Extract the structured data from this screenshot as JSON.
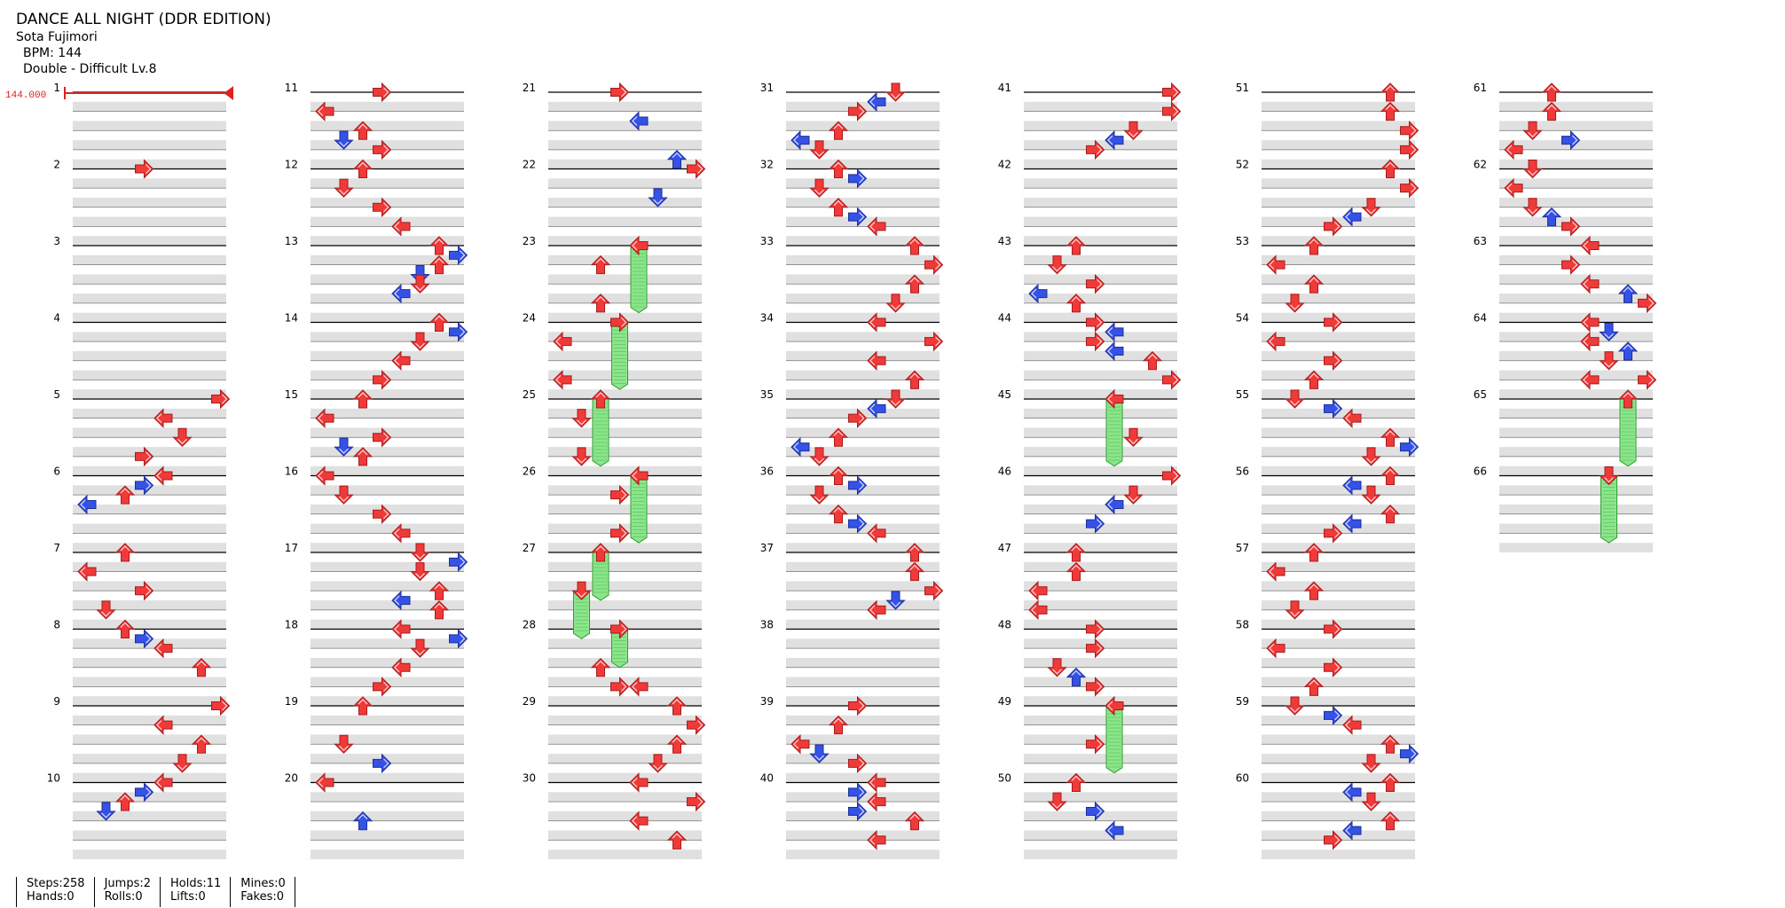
{
  "song": {
    "title": "DANCE ALL NIGHT (DDR EDITION)",
    "artist": "Sota Fujimori",
    "bpm_label": "BPM: 144",
    "difficulty": "Double - Difficult Lv.8"
  },
  "bpm_marker": "144.000",
  "colors": {
    "quarter": "#f03a3a",
    "eighth": "#3552e6",
    "hold": "#8ce58c",
    "hold_stroke": "#2f9e2f",
    "lane_band": "#e0e0e0",
    "bpm_marker": "#e02020"
  },
  "icons": [
    "arrow-left-icon",
    "arrow-down-icon",
    "arrow-up-icon",
    "arrow-right-icon"
  ],
  "stats": [
    [
      {
        "label": "Steps:258"
      },
      {
        "label": "Hands:0"
      }
    ],
    [
      {
        "label": "Jumps:2"
      },
      {
        "label": "Rolls:0"
      }
    ],
    [
      {
        "label": "Holds:11"
      },
      {
        "label": "Lifts:0"
      }
    ],
    [
      {
        "label": "Mines:0"
      },
      {
        "label": "Fakes:0"
      }
    ]
  ],
  "chart_data": {
    "type": "table",
    "measure_count": 66,
    "lanes": [
      "P1-Left",
      "P1-Down",
      "P1-Up",
      "P1-Right",
      "P2-Left",
      "P2-Down",
      "P2-Up",
      "P2-Right"
    ],
    "notes": [
      [
        2,
        0.0,
        3,
        "q"
      ],
      [
        5,
        0.0,
        7,
        "q"
      ],
      [
        5,
        1.0,
        4,
        "q"
      ],
      [
        5,
        2.0,
        5,
        "q"
      ],
      [
        5,
        3.0,
        3,
        "q"
      ],
      [
        6,
        0.0,
        4,
        "q"
      ],
      [
        6,
        0.5,
        3,
        "e"
      ],
      [
        6,
        1.0,
        2,
        "q"
      ],
      [
        6,
        1.5,
        0,
        "e"
      ],
      [
        7,
        0.0,
        2,
        "q"
      ],
      [
        7,
        1.0,
        0,
        "q"
      ],
      [
        7,
        2.0,
        3,
        "q"
      ],
      [
        7,
        3.0,
        1,
        "q"
      ],
      [
        8,
        0.0,
        2,
        "q"
      ],
      [
        8,
        0.5,
        3,
        "e"
      ],
      [
        8,
        1.0,
        4,
        "q"
      ],
      [
        8,
        2.0,
        6,
        "q"
      ],
      [
        9,
        0.0,
        7,
        "q"
      ],
      [
        9,
        1.0,
        4,
        "q"
      ],
      [
        9,
        2.0,
        6,
        "q"
      ],
      [
        9,
        3.0,
        5,
        "q"
      ],
      [
        10,
        0.0,
        4,
        "q"
      ],
      [
        10,
        0.5,
        3,
        "e"
      ],
      [
        10,
        1.0,
        2,
        "q"
      ],
      [
        10,
        1.5,
        1,
        "e"
      ],
      [
        11,
        0.0,
        3,
        "q"
      ],
      [
        11,
        1.0,
        0,
        "q"
      ],
      [
        11,
        2.0,
        2,
        "q"
      ],
      [
        11,
        2.5,
        1,
        "e"
      ],
      [
        11,
        3.0,
        3,
        "q"
      ],
      [
        12,
        0.0,
        2,
        "q"
      ],
      [
        12,
        1.0,
        1,
        "q"
      ],
      [
        12,
        2.0,
        3,
        "q"
      ],
      [
        12,
        3.0,
        4,
        "q"
      ],
      [
        13,
        0.0,
        6,
        "q"
      ],
      [
        13,
        0.5,
        7,
        "e"
      ],
      [
        13,
        1.0,
        6,
        "q"
      ],
      [
        13,
        1.5,
        5,
        "e"
      ],
      [
        13,
        2.0,
        5,
        "q"
      ],
      [
        13,
        2.5,
        4,
        "e"
      ],
      [
        14,
        0.0,
        6,
        "q"
      ],
      [
        14,
        0.5,
        7,
        "e"
      ],
      [
        14,
        1.0,
        5,
        "q"
      ],
      [
        14,
        2.0,
        4,
        "q"
      ],
      [
        14,
        3.0,
        3,
        "q"
      ],
      [
        15,
        0.0,
        2,
        "q"
      ],
      [
        15,
        1.0,
        0,
        "q"
      ],
      [
        15,
        2.0,
        3,
        "q"
      ],
      [
        15,
        2.5,
        1,
        "e"
      ],
      [
        15,
        3.0,
        2,
        "q"
      ],
      [
        16,
        0.0,
        0,
        "q"
      ],
      [
        16,
        1.0,
        1,
        "q"
      ],
      [
        16,
        2.0,
        3,
        "q"
      ],
      [
        16,
        3.0,
        4,
        "q"
      ],
      [
        17,
        0.0,
        5,
        "q"
      ],
      [
        17,
        0.5,
        7,
        "e"
      ],
      [
        17,
        1.0,
        5,
        "q"
      ],
      [
        17,
        2.0,
        6,
        "q"
      ],
      [
        17,
        2.5,
        4,
        "e"
      ],
      [
        17,
        3.0,
        6,
        "q"
      ],
      [
        18,
        0.0,
        4,
        "q"
      ],
      [
        18,
        0.5,
        7,
        "e"
      ],
      [
        18,
        1.0,
        5,
        "q"
      ],
      [
        18,
        2.0,
        4,
        "q"
      ],
      [
        18,
        3.0,
        3,
        "q"
      ],
      [
        19,
        0.0,
        2,
        "q"
      ],
      [
        19,
        2.0,
        1,
        "q"
      ],
      [
        19,
        3.0,
        3,
        "e"
      ],
      [
        20,
        0.0,
        0,
        "q"
      ],
      [
        20,
        2.0,
        2,
        "e"
      ],
      [
        21,
        0.0,
        3,
        "q"
      ],
      [
        21,
        1.5,
        4,
        "e"
      ],
      [
        22,
        0.0,
        7,
        "q"
      ],
      [
        22,
        1.5,
        5,
        "e"
      ],
      [
        22,
        -0.5,
        6,
        "e"
      ],
      [
        23,
        0.0,
        4,
        "q"
      ],
      [
        23,
        1.0,
        2,
        "q"
      ],
      [
        23,
        3.0,
        2,
        "q"
      ],
      [
        24,
        0.0,
        3,
        "q"
      ],
      [
        24,
        1.0,
        0,
        "q"
      ],
      [
        24,
        3.0,
        0,
        "q"
      ],
      [
        25,
        0.0,
        2,
        "q"
      ],
      [
        25,
        1.0,
        1,
        "q"
      ],
      [
        25,
        3.0,
        1,
        "q"
      ],
      [
        26,
        0.0,
        4,
        "q"
      ],
      [
        26,
        1.0,
        3,
        "q"
      ],
      [
        26,
        3.0,
        3,
        "q"
      ],
      [
        27,
        0.0,
        2,
        "q"
      ],
      [
        27,
        2.0,
        1,
        "q"
      ],
      [
        28,
        0.0,
        3,
        "q"
      ],
      [
        28,
        2.0,
        2,
        "q"
      ],
      [
        28,
        3.0,
        3,
        "q"
      ],
      [
        28,
        3.0,
        4,
        "q"
      ],
      [
        29,
        0.0,
        6,
        "q"
      ],
      [
        29,
        1.0,
        7,
        "q"
      ],
      [
        29,
        2.0,
        6,
        "q"
      ],
      [
        29,
        3.0,
        5,
        "q"
      ],
      [
        30,
        0.0,
        4,
        "q"
      ],
      [
        30,
        1.0,
        7,
        "q"
      ],
      [
        30,
        2.0,
        4,
        "q"
      ],
      [
        30,
        3.0,
        6,
        "q"
      ],
      [
        31,
        0.0,
        5,
        "q"
      ],
      [
        31,
        0.5,
        4,
        "e"
      ],
      [
        31,
        1.0,
        3,
        "q"
      ],
      [
        31,
        2.0,
        2,
        "q"
      ],
      [
        31,
        2.5,
        0,
        "e"
      ],
      [
        31,
        3.0,
        1,
        "q"
      ],
      [
        32,
        0.0,
        2,
        "q"
      ],
      [
        32,
        0.5,
        3,
        "e"
      ],
      [
        32,
        1.0,
        1,
        "q"
      ],
      [
        32,
        2.0,
        2,
        "q"
      ],
      [
        32,
        2.5,
        3,
        "e"
      ],
      [
        32,
        3.0,
        4,
        "q"
      ],
      [
        33,
        0.0,
        6,
        "q"
      ],
      [
        33,
        1.0,
        7,
        "q"
      ],
      [
        33,
        2.0,
        6,
        "q"
      ],
      [
        33,
        3.0,
        5,
        "q"
      ],
      [
        34,
        0.0,
        4,
        "q"
      ],
      [
        34,
        1.0,
        7,
        "q"
      ],
      [
        34,
        2.0,
        4,
        "q"
      ],
      [
        34,
        3.0,
        6,
        "q"
      ],
      [
        35,
        0.0,
        5,
        "q"
      ],
      [
        35,
        0.5,
        4,
        "e"
      ],
      [
        35,
        1.0,
        3,
        "q"
      ],
      [
        35,
        2.0,
        2,
        "q"
      ],
      [
        35,
        2.5,
        0,
        "e"
      ],
      [
        35,
        3.0,
        1,
        "q"
      ],
      [
        36,
        0.0,
        2,
        "q"
      ],
      [
        36,
        0.5,
        3,
        "e"
      ],
      [
        36,
        1.0,
        1,
        "q"
      ],
      [
        36,
        2.0,
        2,
        "q"
      ],
      [
        36,
        2.5,
        3,
        "e"
      ],
      [
        36,
        3.0,
        4,
        "q"
      ],
      [
        37,
        0.0,
        6,
        "q"
      ],
      [
        37,
        1.0,
        6,
        "q"
      ],
      [
        37,
        2.0,
        7,
        "q"
      ],
      [
        37,
        2.5,
        5,
        "e"
      ],
      [
        37,
        3.0,
        4,
        "q"
      ],
      [
        39,
        0.0,
        3,
        "q"
      ],
      [
        39,
        1.0,
        2,
        "q"
      ],
      [
        39,
        2.0,
        0,
        "q"
      ],
      [
        39,
        2.5,
        1,
        "e"
      ],
      [
        39,
        3.0,
        3,
        "q"
      ],
      [
        40,
        0.0,
        4,
        "q"
      ],
      [
        40,
        0.5,
        3,
        "e"
      ],
      [
        40,
        1.0,
        4,
        "q"
      ],
      [
        40,
        1.5,
        3,
        "e"
      ],
      [
        40,
        2.0,
        6,
        "q"
      ],
      [
        40,
        3.0,
        4,
        "q"
      ],
      [
        41,
        0.0,
        7,
        "q"
      ],
      [
        41,
        1.0,
        7,
        "q"
      ],
      [
        41,
        2.0,
        5,
        "q"
      ],
      [
        41,
        2.5,
        4,
        "e"
      ],
      [
        41,
        3.0,
        3,
        "q"
      ],
      [
        43,
        0.0,
        2,
        "q"
      ],
      [
        43,
        1.0,
        1,
        "q"
      ],
      [
        43,
        2.0,
        3,
        "q"
      ],
      [
        43,
        2.5,
        0,
        "e"
      ],
      [
        43,
        3.0,
        2,
        "q"
      ],
      [
        44,
        0.0,
        3,
        "q"
      ],
      [
        44,
        0.5,
        4,
        "e"
      ],
      [
        44,
        1.0,
        3,
        "q"
      ],
      [
        44,
        1.5,
        4,
        "e"
      ],
      [
        44,
        2.0,
        6,
        "q"
      ],
      [
        44,
        3.0,
        7,
        "q"
      ],
      [
        45,
        0.0,
        4,
        "q"
      ],
      [
        45,
        2.0,
        5,
        "q"
      ],
      [
        46,
        0.0,
        7,
        "q"
      ],
      [
        46,
        1.0,
        5,
        "q"
      ],
      [
        46,
        1.5,
        4,
        "e"
      ],
      [
        46,
        2.5,
        3,
        "e"
      ],
      [
        47,
        0.0,
        2,
        "q"
      ],
      [
        47,
        1.0,
        2,
        "q"
      ],
      [
        47,
        2.0,
        0,
        "q"
      ],
      [
        47,
        3.0,
        0,
        "q"
      ],
      [
        48,
        0.0,
        3,
        "q"
      ],
      [
        48,
        1.0,
        3,
        "q"
      ],
      [
        48,
        2.0,
        1,
        "q"
      ],
      [
        48,
        2.5,
        2,
        "e"
      ],
      [
        48,
        3.0,
        3,
        "q"
      ],
      [
        49,
        0.0,
        4,
        "q"
      ],
      [
        49,
        2.0,
        3,
        "q"
      ],
      [
        50,
        0.0,
        2,
        "q"
      ],
      [
        50,
        1.0,
        1,
        "q"
      ],
      [
        50,
        1.5,
        3,
        "e"
      ],
      [
        50,
        2.5,
        4,
        "e"
      ],
      [
        51,
        0.0,
        6,
        "q"
      ],
      [
        51,
        1.0,
        6,
        "q"
      ],
      [
        51,
        2.0,
        7,
        "q"
      ],
      [
        51,
        3.0,
        7,
        "q"
      ],
      [
        52,
        0.0,
        6,
        "q"
      ],
      [
        52,
        1.0,
        7,
        "q"
      ],
      [
        52,
        2.0,
        5,
        "q"
      ],
      [
        52,
        2.5,
        4,
        "e"
      ],
      [
        52,
        3.0,
        3,
        "q"
      ],
      [
        53,
        0.0,
        2,
        "q"
      ],
      [
        53,
        1.0,
        0,
        "q"
      ],
      [
        53,
        2.0,
        2,
        "q"
      ],
      [
        53,
        3.0,
        1,
        "q"
      ],
      [
        54,
        0.0,
        3,
        "q"
      ],
      [
        54,
        1.0,
        0,
        "q"
      ],
      [
        54,
        2.0,
        3,
        "q"
      ],
      [
        54,
        3.0,
        2,
        "q"
      ],
      [
        55,
        0.0,
        1,
        "q"
      ],
      [
        55,
        0.5,
        3,
        "e"
      ],
      [
        55,
        1.0,
        4,
        "q"
      ],
      [
        55,
        2.0,
        6,
        "q"
      ],
      [
        55,
        2.5,
        7,
        "e"
      ],
      [
        55,
        3.0,
        5,
        "q"
      ],
      [
        56,
        0.0,
        6,
        "q"
      ],
      [
        56,
        0.5,
        4,
        "e"
      ],
      [
        56,
        1.0,
        5,
        "q"
      ],
      [
        56,
        2.0,
        6,
        "q"
      ],
      [
        56,
        2.5,
        4,
        "e"
      ],
      [
        56,
        3.0,
        3,
        "q"
      ],
      [
        57,
        0.0,
        2,
        "q"
      ],
      [
        57,
        1.0,
        0,
        "q"
      ],
      [
        57,
        2.0,
        2,
        "q"
      ],
      [
        57,
        3.0,
        1,
        "q"
      ],
      [
        58,
        0.0,
        3,
        "q"
      ],
      [
        58,
        1.0,
        0,
        "q"
      ],
      [
        58,
        2.0,
        3,
        "q"
      ],
      [
        58,
        3.0,
        2,
        "q"
      ],
      [
        59,
        0.0,
        1,
        "q"
      ],
      [
        59,
        0.5,
        3,
        "e"
      ],
      [
        59,
        1.0,
        4,
        "q"
      ],
      [
        59,
        2.0,
        6,
        "q"
      ],
      [
        59,
        2.5,
        7,
        "e"
      ],
      [
        59,
        3.0,
        5,
        "q"
      ],
      [
        60,
        0.0,
        6,
        "q"
      ],
      [
        60,
        0.5,
        4,
        "e"
      ],
      [
        60,
        1.0,
        5,
        "q"
      ],
      [
        60,
        2.0,
        6,
        "q"
      ],
      [
        60,
        2.5,
        4,
        "e"
      ],
      [
        60,
        3.0,
        3,
        "q"
      ],
      [
        61,
        0.0,
        2,
        "q"
      ],
      [
        61,
        1.0,
        2,
        "q"
      ],
      [
        61,
        2.0,
        1,
        "q"
      ],
      [
        61,
        2.5,
        3,
        "e"
      ],
      [
        61,
        3.0,
        0,
        "q"
      ],
      [
        62,
        0.0,
        1,
        "q"
      ],
      [
        62,
        1.0,
        0,
        "q"
      ],
      [
        62,
        2.0,
        1,
        "q"
      ],
      [
        62,
        2.5,
        2,
        "e"
      ],
      [
        62,
        3.0,
        3,
        "q"
      ],
      [
        63,
        0.0,
        4,
        "q"
      ],
      [
        63,
        1.0,
        3,
        "q"
      ],
      [
        63,
        2.0,
        4,
        "q"
      ],
      [
        63,
        2.5,
        6,
        "e"
      ],
      [
        63,
        3.0,
        7,
        "q"
      ],
      [
        64,
        0.0,
        4,
        "q"
      ],
      [
        64,
        0.5,
        5,
        "e"
      ],
      [
        64,
        1.0,
        4,
        "q"
      ],
      [
        64,
        1.5,
        6,
        "e"
      ],
      [
        64,
        2.0,
        5,
        "q"
      ],
      [
        64,
        3.0,
        4,
        "q"
      ],
      [
        64,
        3.0,
        7,
        "q"
      ],
      [
        65,
        0.0,
        6,
        "q"
      ],
      [
        66,
        0.0,
        5,
        "q"
      ]
    ],
    "holds": [
      {
        "lane": 4,
        "start": [
          23,
          0.0
        ],
        "end": [
          23,
          3.5
        ]
      },
      {
        "lane": 3,
        "start": [
          24,
          0.0
        ],
        "end": [
          24,
          3.5
        ]
      },
      {
        "lane": 2,
        "start": [
          25,
          0.0
        ],
        "end": [
          25,
          3.5
        ]
      },
      {
        "lane": 4,
        "start": [
          26,
          0.0
        ],
        "end": [
          26,
          3.5
        ]
      },
      {
        "lane": 2,
        "start": [
          27,
          0.0
        ],
        "end": [
          27,
          2.5
        ]
      },
      {
        "lane": 1,
        "start": [
          27,
          2.0
        ],
        "end": [
          28,
          0.5
        ]
      },
      {
        "lane": 3,
        "start": [
          28,
          0.0
        ],
        "end": [
          28,
          2.0
        ]
      },
      {
        "lane": 4,
        "start": [
          45,
          0.0
        ],
        "end": [
          45,
          3.5
        ]
      },
      {
        "lane": 4,
        "start": [
          49,
          0.0
        ],
        "end": [
          49,
          3.5
        ]
      },
      {
        "lane": 6,
        "start": [
          65,
          0.0
        ],
        "end": [
          65,
          3.5
        ]
      },
      {
        "lane": 5,
        "start": [
          66,
          0.0
        ],
        "end": [
          66,
          3.5
        ]
      }
    ]
  }
}
